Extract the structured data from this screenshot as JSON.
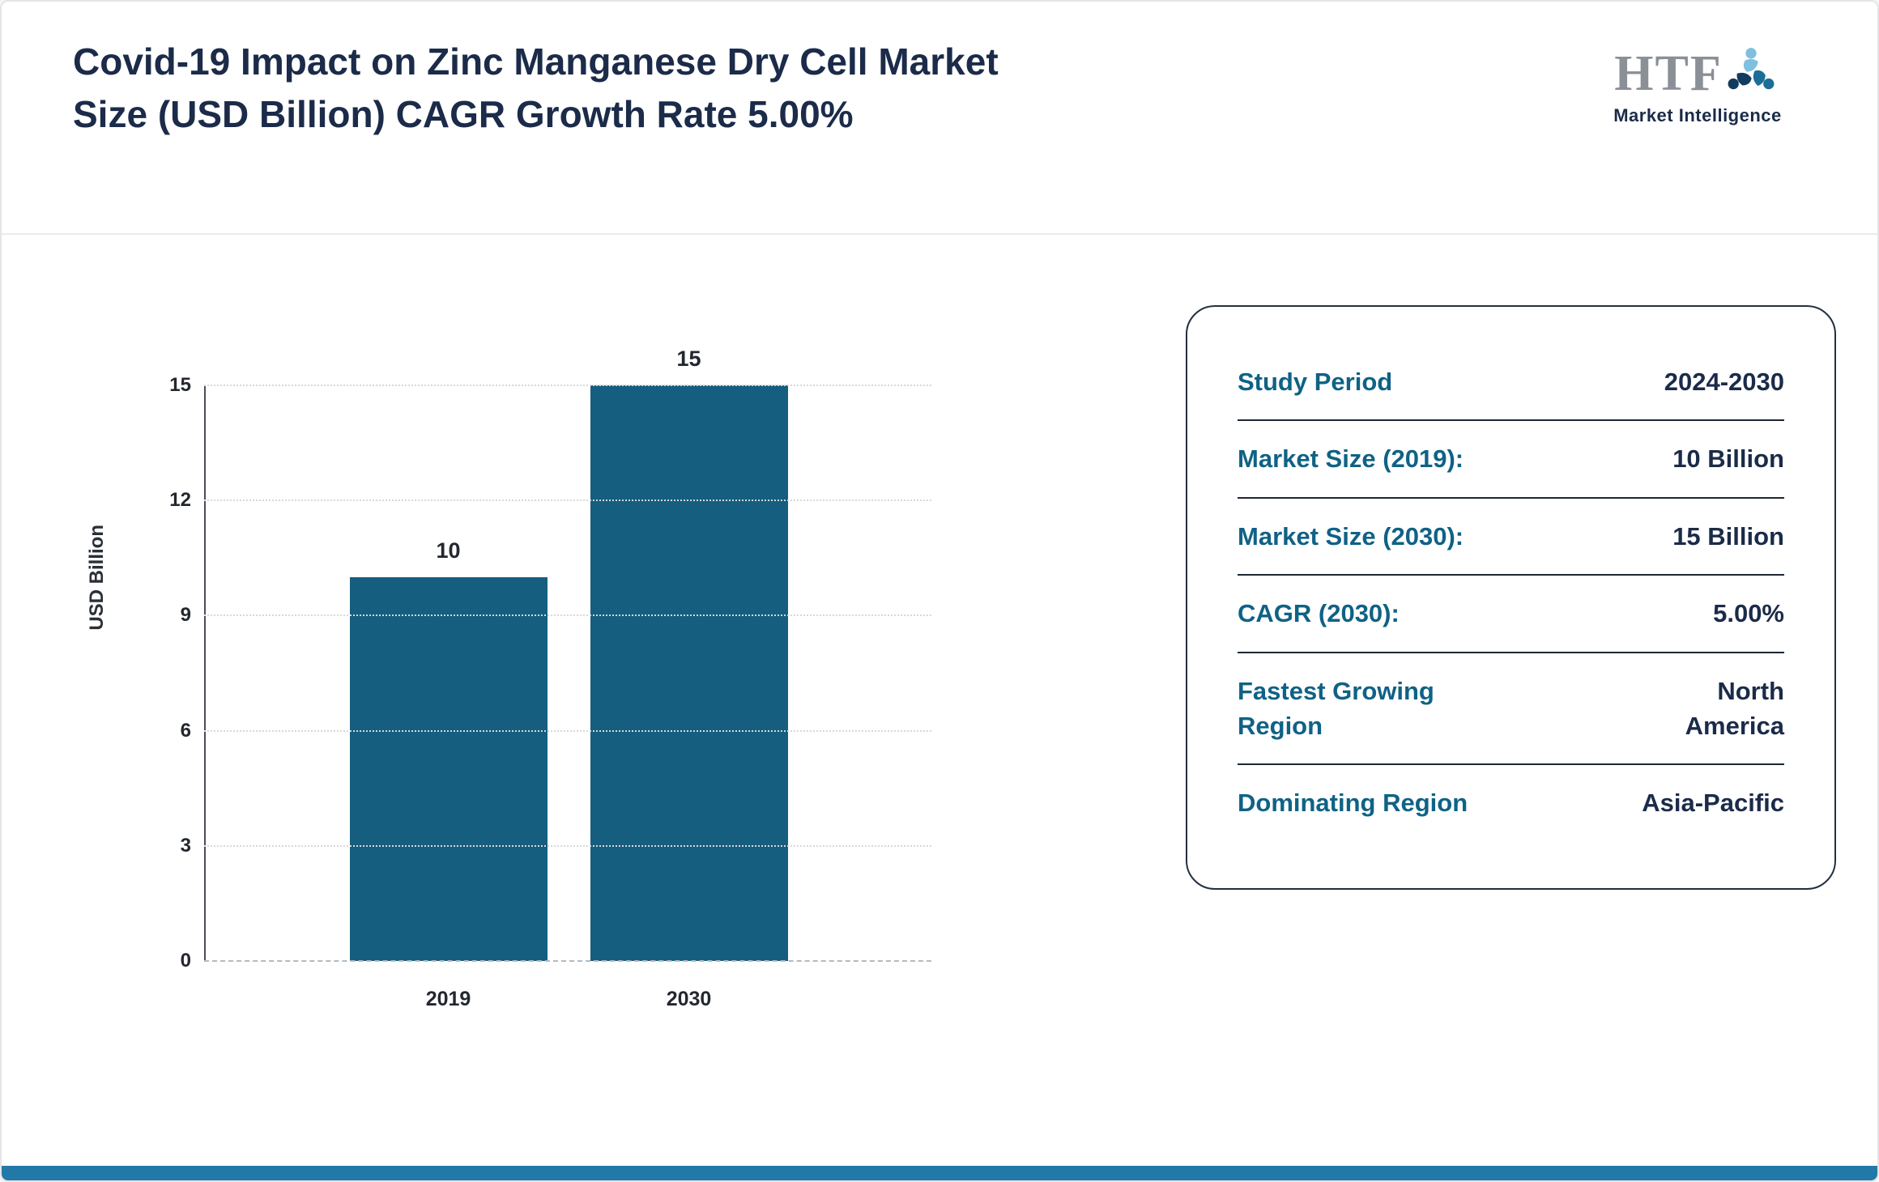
{
  "header": {
    "title": "Covid-19 Impact on Zinc Manganese Dry Cell Market Size (USD Billion) CAGR Growth Rate 5.00%"
  },
  "logo": {
    "text": "HTF",
    "subtext": "Market Intelligence"
  },
  "chart_data": {
    "type": "bar",
    "categories": [
      "2019",
      "2030"
    ],
    "values": [
      10,
      15
    ],
    "title": "",
    "xlabel": "",
    "ylabel": "USD Billion",
    "yticks": [
      0,
      3,
      6,
      9,
      12,
      15
    ],
    "ylim": [
      0,
      15
    ],
    "grid": "dotted horizontal",
    "bar_color": "#155E7F"
  },
  "info_card": {
    "rows": [
      {
        "label": "Study Period",
        "value": "2024-2030"
      },
      {
        "label": "Market Size (2019):",
        "value": "10 Billion"
      },
      {
        "label": "Market Size (2030):",
        "value": "15 Billion"
      },
      {
        "label": "CAGR (2030):",
        "value": "5.00%"
      },
      {
        "label": "Fastest Growing Region",
        "value": "North America"
      },
      {
        "label": "Dominating Region",
        "value": "Asia-Pacific"
      }
    ]
  },
  "colors": {
    "bar": "#155E7F",
    "label_teal": "#0F6285",
    "navy": "#1B2B49",
    "footer": "#2279A8",
    "grid": "#D8D8D8",
    "border": "#22303F"
  }
}
